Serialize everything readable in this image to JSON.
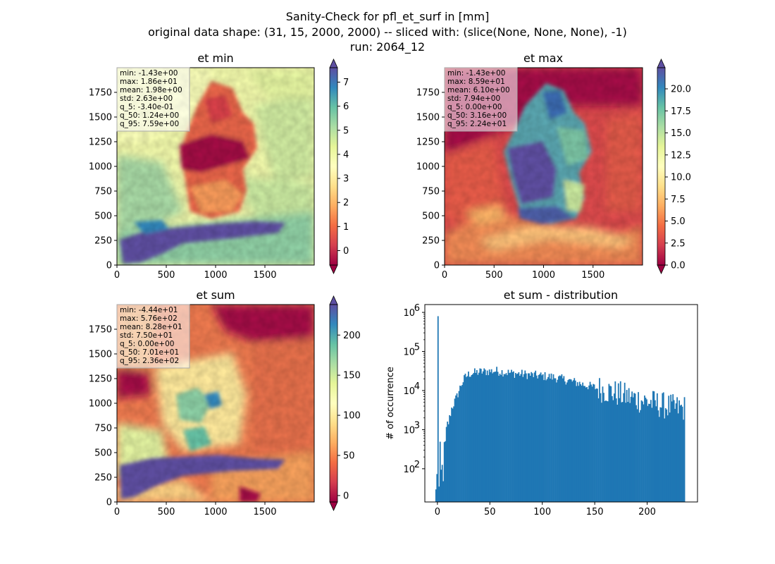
{
  "figure": {
    "title_lines": [
      "Sanity-Check for pfl_et_surf in [mm]",
      "original data shape: (31, 15, 2000, 2000) -- sliced with: (slice(None, None, None), -1)",
      "run: 2064_12"
    ]
  },
  "colors": {
    "spectral": [
      "#9e0142",
      "#d53e4f",
      "#f46d43",
      "#fdae61",
      "#fee08b",
      "#ffffbf",
      "#e6f598",
      "#abdda4",
      "#66c2a5",
      "#3288bd",
      "#5e4fa2"
    ],
    "hist_bar": "#1f77b4",
    "stats_box": "#f4b6c2"
  },
  "chart_data": [
    {
      "type": "heatmap",
      "title": "et min",
      "xlim": [
        0,
        2000
      ],
      "ylim": [
        0,
        2000
      ],
      "xticks": [
        "0",
        "500",
        "1000",
        "1500"
      ],
      "yticks": [
        "0",
        "250",
        "500",
        "750",
        "1000",
        "1250",
        "1500",
        "1750"
      ],
      "colorbar": {
        "range": [
          -0.6,
          7.6
        ],
        "ticks": [
          "0",
          "1",
          "2",
          "3",
          "4",
          "5",
          "6",
          "7"
        ],
        "tick_values": [
          0,
          1,
          2,
          3,
          4,
          5,
          6,
          7
        ],
        "extend": "both",
        "cmap": "Spectral"
      },
      "stats": [
        "min: -1.43e+00",
        "max: 1.86e+01",
        "mean: 1.98e+00",
        "std: 2.63e+00",
        "q_5: -3.40e-01",
        "q_50: 1.24e+00",
        "q_95: 7.59e+00"
      ]
    },
    {
      "type": "heatmap",
      "title": "et max",
      "xlim": [
        0,
        2000
      ],
      "ylim": [
        0,
        2000
      ],
      "xticks": [
        "0",
        "500",
        "1000",
        "1500"
      ],
      "yticks": [
        "0",
        "250",
        "500",
        "750",
        "1000",
        "1250",
        "1500",
        "1750"
      ],
      "colorbar": {
        "range": [
          0,
          22.4
        ],
        "ticks": [
          "0.0",
          "2.5",
          "5.0",
          "7.5",
          "10.0",
          "12.5",
          "15.0",
          "17.5",
          "20.0"
        ],
        "tick_values": [
          0,
          2.5,
          5,
          7.5,
          10,
          12.5,
          15,
          17.5,
          20
        ],
        "extend": "both",
        "cmap": "Spectral"
      },
      "stats": [
        "min: -1.43e+00",
        "max: 8.59e+01",
        "mean: 6.10e+00",
        "std: 7.94e+00",
        "q_5: 0.00e+00",
        "q_50: 3.16e+00",
        "q_95: 2.24e+01"
      ]
    },
    {
      "type": "heatmap",
      "title": "et sum",
      "xlim": [
        0,
        2000
      ],
      "ylim": [
        0,
        2000
      ],
      "xticks": [
        "0",
        "500",
        "1000",
        "1500"
      ],
      "yticks": [
        "0",
        "250",
        "500",
        "750",
        "1000",
        "1250",
        "1500",
        "1750"
      ],
      "colorbar": {
        "range": [
          -8,
          238
        ],
        "ticks": [
          "0",
          "50",
          "100",
          "150",
          "200"
        ],
        "tick_values": [
          0,
          50,
          100,
          150,
          200
        ],
        "extend": "both",
        "cmap": "Spectral"
      },
      "stats": [
        "min: -4.44e+01",
        "max: 5.76e+02",
        "mean: 8.28e+01",
        "std: 7.50e+01",
        "q_5: 0.00e+00",
        "q_50: 7.01e+01",
        "q_95: 2.36e+02"
      ]
    },
    {
      "type": "bar",
      "title": "et sum - distribution",
      "ylabel": "# of occurrence",
      "xlabel": "",
      "yscale": "log",
      "xlim": [
        -12,
        248
      ],
      "ylim_log10": [
        1.15,
        6.2
      ],
      "xticks": [
        "0",
        "50",
        "100",
        "150",
        "200"
      ],
      "xtick_values": [
        0,
        50,
        100,
        150,
        200
      ],
      "yticks": [
        "10",
        "10",
        "10",
        "10",
        "10"
      ],
      "ytick_exponents": [
        "2",
        "3",
        "4",
        "5",
        "6"
      ],
      "ytick_log10": [
        2,
        3,
        4,
        5,
        6
      ],
      "histogram_profile": {
        "bin_start": -2,
        "bin_end": 236,
        "bin_width": 1,
        "spike": {
          "x": 0,
          "count": 800000
        },
        "control_points": [
          [
            -2,
            20
          ],
          [
            -1,
            120
          ],
          [
            1,
            25
          ],
          [
            2,
            140
          ],
          [
            3,
            60
          ],
          [
            5,
            110
          ],
          [
            7,
            300
          ],
          [
            10,
            1500
          ],
          [
            13,
            3500
          ],
          [
            18,
            7000
          ],
          [
            22,
            14000
          ],
          [
            26,
            22000
          ],
          [
            30,
            27000
          ],
          [
            40,
            30000
          ],
          [
            55,
            32000
          ],
          [
            70,
            28000
          ],
          [
            90,
            25000
          ],
          [
            110,
            22000
          ],
          [
            125,
            18000
          ],
          [
            140,
            14000
          ],
          [
            155,
            11000
          ],
          [
            170,
            8500
          ],
          [
            190,
            6000
          ],
          [
            210,
            4500
          ],
          [
            225,
            3600
          ],
          [
            235,
            3500
          ]
        ]
      }
    }
  ]
}
